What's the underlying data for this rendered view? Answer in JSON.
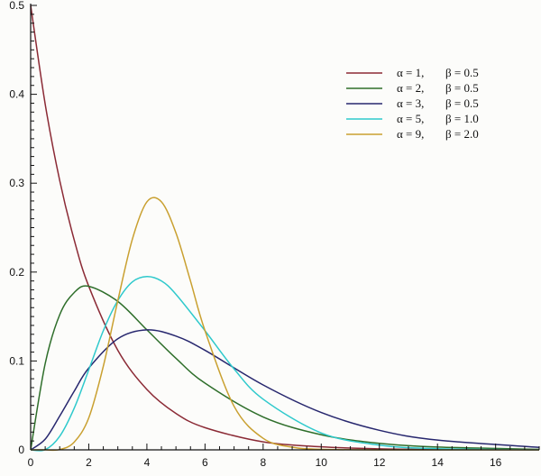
{
  "chart_data": {
    "type": "line",
    "title": "",
    "xlabel": "",
    "ylabel": "",
    "xlim": [
      0,
      17.5
    ],
    "ylim": [
      0,
      0.5
    ],
    "grid": false,
    "legend_position": "top-right",
    "x_ticks": [
      "0",
      "2",
      "4",
      "6",
      "8",
      "10",
      "12",
      "14",
      "16"
    ],
    "x_tick_values": [
      0,
      2,
      4,
      6,
      8,
      10,
      12,
      14,
      16
    ],
    "y_ticks": [
      "0",
      "0.1",
      "0.2",
      "0.3",
      "0.4",
      "0.5"
    ],
    "y_tick_values": [
      0,
      0.1,
      0.2,
      0.3,
      0.4,
      0.5
    ],
    "series": [
      {
        "alpha_text": "α = 1,",
        "beta_text": "β = 0.5",
        "color": "#8b2a35",
        "x": [
          0,
          0.5,
          1,
          1.5,
          2,
          3,
          4,
          5,
          6,
          8,
          10,
          12,
          14,
          17.5
        ],
        "y": [
          0.5,
          0.389,
          0.303,
          0.236,
          0.184,
          0.112,
          0.068,
          0.041,
          0.025,
          0.009,
          0.0034,
          0.0012,
          0.0005,
          0.0001
        ]
      },
      {
        "alpha_text": "α = 2,",
        "beta_text": "β = 0.5",
        "color": "#2e6e2a",
        "x": [
          0,
          0.5,
          1,
          1.5,
          2,
          3,
          4,
          5,
          6,
          8,
          10,
          12,
          14,
          17.5
        ],
        "y": [
          0,
          0.097,
          0.152,
          0.177,
          0.184,
          0.167,
          0.135,
          0.103,
          0.075,
          0.037,
          0.017,
          0.0074,
          0.0032,
          0.0006
        ]
      },
      {
        "alpha_text": "α = 3,",
        "beta_text": "β = 0.5",
        "color": "#27276e",
        "x": [
          0,
          0.5,
          1,
          1.5,
          2,
          3,
          4,
          5,
          6,
          8,
          10,
          12,
          14,
          17.5
        ],
        "y": [
          0,
          0.012,
          0.038,
          0.066,
          0.092,
          0.125,
          0.135,
          0.128,
          0.112,
          0.073,
          0.042,
          0.022,
          0.011,
          0.0028
        ]
      },
      {
        "alpha_text": "α = 5,",
        "beta_text": "β = 1.0",
        "color": "#2ec9cc",
        "x": [
          0,
          0.5,
          1,
          1.5,
          2,
          2.5,
          3,
          3.5,
          4,
          4.5,
          5,
          6,
          7,
          8,
          10,
          12,
          14,
          17.5
        ],
        "y": [
          0,
          0.0002,
          0.0153,
          0.047,
          0.09,
          0.134,
          0.168,
          0.189,
          0.195,
          0.19,
          0.175,
          0.134,
          0.091,
          0.057,
          0.019,
          0.0053,
          0.0013,
          0.0001
        ]
      },
      {
        "alpha_text": "α = 9,",
        "beta_text": "β = 2.0",
        "color": "#c9a030",
        "x": [
          0,
          0.5,
          1,
          1.5,
          2,
          2.5,
          3,
          3.5,
          4,
          4.5,
          5,
          5.5,
          6,
          7,
          8,
          9,
          10,
          12,
          17.5
        ],
        "y": [
          0,
          0,
          0.0003,
          0.0088,
          0.036,
          0.094,
          0.168,
          0.237,
          0.279,
          0.279,
          0.244,
          0.19,
          0.134,
          0.049,
          0.013,
          0.003,
          0.0006,
          0,
          0
        ]
      }
    ]
  }
}
